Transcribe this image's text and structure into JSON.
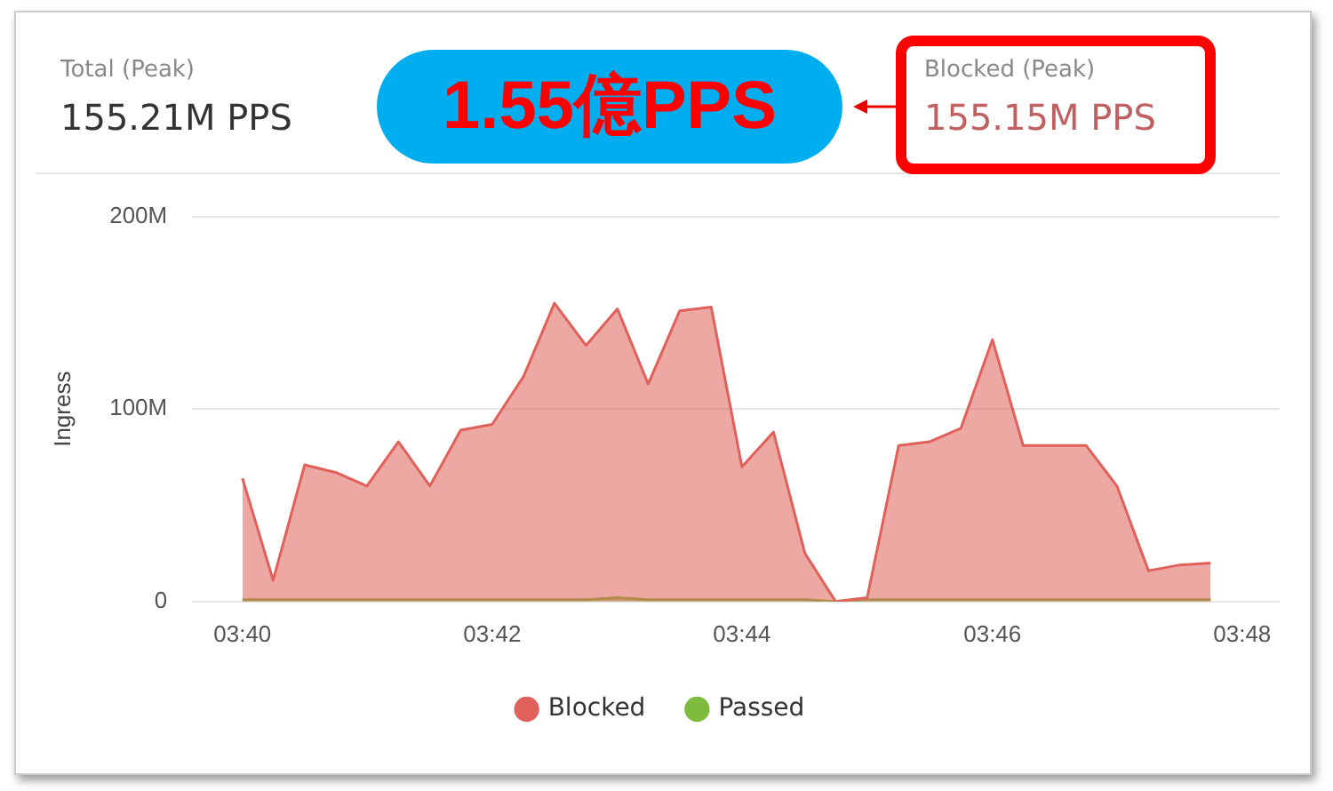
{
  "chart_data": {
    "type": "area",
    "ylabel": "Ingress",
    "annotations": [
      "Total (Peak)",
      "155.21M PPS",
      "1.55億PPS",
      "Blocked (Peak)",
      "155.15M PPS"
    ],
    "x": [
      3.6667,
      3.6708,
      3.675,
      3.6792,
      3.6833,
      3.6875,
      3.6917,
      3.6958,
      3.7,
      3.7042,
      3.7083,
      3.7125,
      3.7167,
      3.7208,
      3.725,
      3.7292,
      3.7333,
      3.7375,
      3.7417,
      3.7458,
      3.75,
      3.7542,
      3.7583,
      3.7625,
      3.7667,
      3.7708,
      3.775,
      3.7792,
      3.7833,
      3.7875,
      3.7917,
      3.7958
    ],
    "series": [
      {
        "name": "Blocked",
        "color": "#e0605a",
        "values": [
          64,
          11,
          71,
          67,
          60,
          83,
          60,
          89,
          92,
          117,
          155,
          133,
          152,
          113,
          151,
          153,
          70,
          88,
          25,
          0,
          2,
          81,
          83,
          90,
          136,
          81,
          81,
          81,
          60,
          16,
          19,
          20
        ]
      },
      {
        "name": "Passed",
        "color": "#7dbb3c",
        "values": [
          1,
          1,
          1,
          1,
          1,
          1,
          1,
          1,
          1,
          1,
          1,
          1,
          2,
          1,
          1,
          1,
          1,
          1,
          1,
          0,
          1,
          1,
          1,
          1,
          1,
          1,
          1,
          1,
          1,
          1,
          1,
          1
        ]
      }
    ],
    "xlim": [
      3.66,
      3.805
    ],
    "xticks": [
      {
        "value": 3.6667,
        "label": "03:40"
      },
      {
        "value": 3.7,
        "label": "03:42"
      },
      {
        "value": 3.7333,
        "label": "03:44"
      },
      {
        "value": 3.7667,
        "label": "03:46"
      },
      {
        "value": 3.8,
        "label": "03:48"
      }
    ],
    "ylim": [
      0,
      200
    ],
    "yticks": [
      {
        "value": 0,
        "label": "0"
      },
      {
        "value": 100,
        "label": "100M"
      },
      {
        "value": 200,
        "label": "200M"
      }
    ],
    "grid": "y",
    "legend": "bottom",
    "marker": "none"
  }
}
